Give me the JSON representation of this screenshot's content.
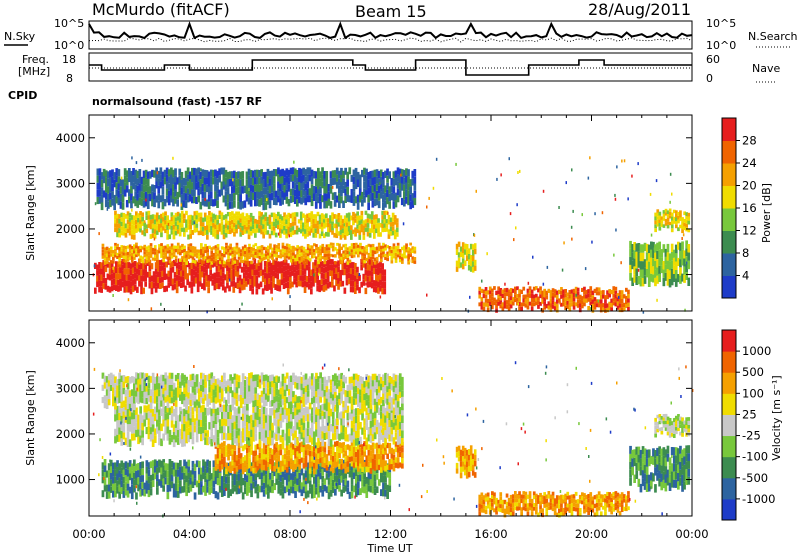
{
  "header": {
    "station": "McMurdo (fitACF)",
    "beam": "Beam 15",
    "date": "28/Aug/2011"
  },
  "top_panels": {
    "left_labels": [
      "N.Sky",
      "Freq.",
      "[MHz]",
      "CPID"
    ],
    "right_labels": [
      "N.Search",
      "Nave"
    ],
    "noise_axis_left": [
      "10^5",
      "10^0"
    ],
    "noise_axis_right": [
      "10^5",
      "10^0"
    ],
    "freq_axis_left": [
      "18",
      "8"
    ],
    "nave_axis_right": [
      "60",
      "0"
    ],
    "cpid_text": "normalsound (fast) -157 RF"
  },
  "colors": {
    "power": [
      "#1e3cc8",
      "#2d64a0",
      "#3c8c50",
      "#78c83c",
      "#f0dc00",
      "#f5a000",
      "#f06400",
      "#e61e1e"
    ],
    "velocity": [
      "#1e3cc8",
      "#2d64a0",
      "#3c8c50",
      "#78c83c",
      "#c8c8c8",
      "#f0dc00",
      "#f5a000",
      "#f06400",
      "#e61e1e"
    ]
  },
  "chart_data": [
    {
      "type": "heatmap",
      "panel": "power",
      "ylabel": "Slant Range [km]",
      "yticks": [
        "1000",
        "2000",
        "3000",
        "4000"
      ],
      "xticks": [
        "00:00",
        "04:00",
        "08:00",
        "12:00",
        "16:00",
        "20:00",
        "00:00"
      ],
      "colorbar_label": "Power [dB]",
      "colorbar_ticks": [
        "28",
        "24",
        "20",
        "16",
        "12",
        "8",
        "4"
      ],
      "ylim": [
        200,
        4500
      ],
      "xlim": [
        0,
        24
      ],
      "bands": [
        {
          "t0": 0.2,
          "t1": 11.8,
          "r0": 650,
          "r1": 1300,
          "level": 7
        },
        {
          "t0": 0.5,
          "t1": 13.0,
          "r0": 1300,
          "r1": 1650,
          "level": 5
        },
        {
          "t0": 1.0,
          "t1": 12.3,
          "r0": 1850,
          "r1": 2350,
          "level": 4
        },
        {
          "t0": 0.3,
          "t1": 13.0,
          "r0": 2500,
          "r1": 3300,
          "level": 1
        },
        {
          "t0": 14.6,
          "t1": 15.4,
          "r0": 1100,
          "r1": 1700,
          "level": 4
        },
        {
          "t0": 21.5,
          "t1": 23.9,
          "r0": 800,
          "r1": 1700,
          "level": 3
        },
        {
          "t0": 22.5,
          "t1": 23.9,
          "r0": 2000,
          "r1": 2400,
          "level": 4
        },
        {
          "t0": 15.5,
          "t1": 21.5,
          "r0": 250,
          "r1": 700,
          "level": 6
        }
      ]
    },
    {
      "type": "heatmap",
      "panel": "velocity",
      "ylabel": "Slant Range [km]",
      "yticks": [
        "1000",
        "2000",
        "3000",
        "4000"
      ],
      "xticks": [
        "00:00",
        "04:00",
        "08:00",
        "12:00",
        "16:00",
        "20:00",
        "00:00"
      ],
      "xlabel": "Time UT",
      "colorbar_label": "Velocity [m s⁻¹]",
      "colorbar_ticks": [
        "1000",
        "500",
        "100",
        "25",
        "-25",
        "-100",
        "-500",
        "-1000"
      ],
      "ylim": [
        200,
        4500
      ],
      "xlim": [
        0,
        24
      ],
      "bands": [
        {
          "t0": 0.5,
          "t1": 12.0,
          "r0": 650,
          "r1": 1400,
          "level": 2
        },
        {
          "t0": 5.0,
          "t1": 12.5,
          "r0": 1200,
          "r1": 1800,
          "level": 6
        },
        {
          "t0": 1.0,
          "t1": 12.5,
          "r0": 1800,
          "r1": 2600,
          "level": 4
        },
        {
          "t0": 0.5,
          "t1": 12.5,
          "r0": 2600,
          "r1": 3300,
          "level": 4
        },
        {
          "t0": 14.6,
          "t1": 15.4,
          "r0": 1100,
          "r1": 1700,
          "level": 6
        },
        {
          "t0": 21.5,
          "t1": 23.9,
          "r0": 800,
          "r1": 1700,
          "level": 2
        },
        {
          "t0": 22.5,
          "t1": 23.9,
          "r0": 2000,
          "r1": 2400,
          "level": 4
        },
        {
          "t0": 15.5,
          "t1": 21.5,
          "r0": 250,
          "r1": 700,
          "level": 6
        }
      ]
    }
  ]
}
